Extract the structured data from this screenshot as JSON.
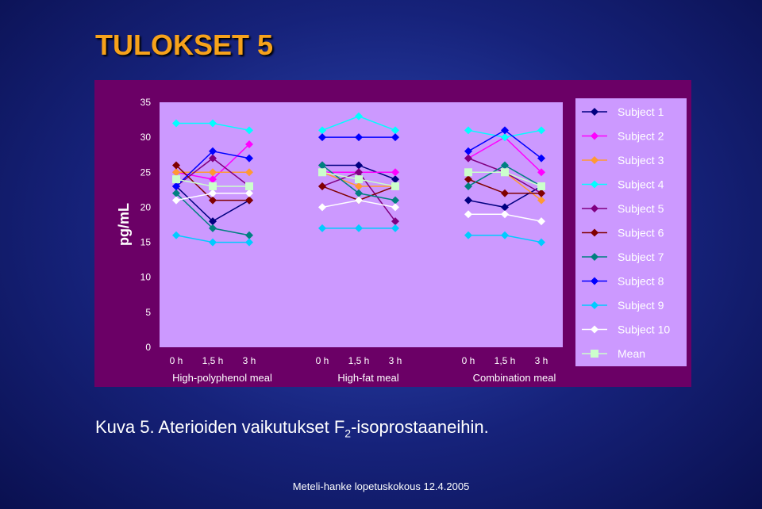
{
  "slide_title": "TULOKSET 5",
  "caption": {
    "prefix": "Kuva 5. Aterioiden vaikutukset F",
    "subscript": "2",
    "suffix": "-isoprostaaneihin."
  },
  "footer": "Meteli-hanke lopetuskokous 12.4.2005",
  "colors": {
    "slide_background": "#1a2a90",
    "title": "#f7a21b",
    "chart_frame": "#6b0066",
    "plot_area": "#cc99ff",
    "legend_background": "#cc99ff",
    "text": "#ffffff"
  },
  "chart_data": {
    "type": "line",
    "title": "",
    "ylabel": "pg/mL",
    "ylim": [
      0,
      35
    ],
    "yticks": [
      0,
      5,
      10,
      15,
      20,
      25,
      30,
      35
    ],
    "grid": false,
    "legend_position": "right",
    "markers_only_with_segments": true,
    "groups": [
      {
        "label": "High-polyphenol meal",
        "x": [
          "0 h",
          "1,5 h",
          "3 h"
        ]
      },
      {
        "label": "High-fat meal",
        "x": [
          "0 h",
          "1,5 h",
          "3 h"
        ]
      },
      {
        "label": "Combination meal",
        "x": [
          "0 h",
          "1,5 h",
          "3 h"
        ]
      }
    ],
    "series": [
      {
        "name": "Subject 1",
        "color": "#000080",
        "marker": "diamond",
        "values": [
          [
            23,
            18,
            21
          ],
          [
            26,
            26,
            24
          ],
          [
            21,
            20,
            23
          ]
        ]
      },
      {
        "name": "Subject 2",
        "color": "#ff00ff",
        "marker": "diamond",
        "values": [
          [
            25,
            24,
            29
          ],
          [
            25,
            25,
            25
          ],
          [
            27,
            30,
            25
          ]
        ]
      },
      {
        "name": "Subject 3",
        "color": "#ff9933",
        "marker": "diamond",
        "values": [
          [
            25,
            25,
            25
          ],
          [
            25,
            23,
            23
          ],
          [
            25,
            25,
            21
          ]
        ]
      },
      {
        "name": "Subject 4",
        "color": "#00ffff",
        "marker": "diamond",
        "values": [
          [
            32,
            32,
            31
          ],
          [
            31,
            33,
            31
          ],
          [
            31,
            30,
            31
          ]
        ]
      },
      {
        "name": "Subject 5",
        "color": "#800080",
        "marker": "diamond",
        "values": [
          [
            23,
            27,
            23
          ],
          [
            23,
            25,
            18
          ],
          [
            27,
            25,
            22
          ]
        ]
      },
      {
        "name": "Subject 6",
        "color": "#800000",
        "marker": "diamond",
        "values": [
          [
            26,
            21,
            21
          ],
          [
            23,
            21,
            23
          ],
          [
            24,
            22,
            22
          ]
        ]
      },
      {
        "name": "Subject 7",
        "color": "#008080",
        "marker": "diamond",
        "values": [
          [
            22,
            17,
            16
          ],
          [
            26,
            22,
            21
          ],
          [
            23,
            26,
            23
          ]
        ]
      },
      {
        "name": "Subject 8",
        "color": "#0000ff",
        "marker": "diamond",
        "values": [
          [
            23,
            28,
            27
          ],
          [
            30,
            30,
            30
          ],
          [
            28,
            31,
            27
          ]
        ]
      },
      {
        "name": "Subject 9",
        "color": "#00ccff",
        "marker": "diamond",
        "values": [
          [
            16,
            15,
            15
          ],
          [
            17,
            17,
            17
          ],
          [
            16,
            16,
            15
          ]
        ]
      },
      {
        "name": "Subject 10",
        "color": "#ffffff",
        "marker": "diamond",
        "values": [
          [
            21,
            22,
            22
          ],
          [
            20,
            21,
            20
          ],
          [
            19,
            19,
            18
          ]
        ]
      },
      {
        "name": "Mean",
        "color": "#ccffcc",
        "marker": "square",
        "values": [
          [
            24,
            23,
            23
          ],
          [
            25,
            24,
            23
          ],
          [
            25,
            25,
            23
          ]
        ]
      }
    ]
  }
}
